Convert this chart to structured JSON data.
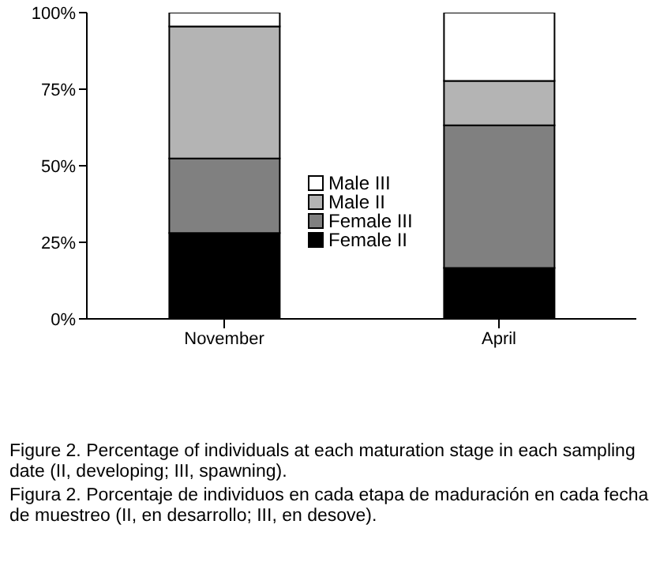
{
  "chart_data": {
    "type": "bar",
    "stacked": true,
    "categories": [
      "November",
      "April"
    ],
    "series": [
      {
        "name": "Female II",
        "color": "#000000",
        "values": [
          28.0,
          16.6
        ]
      },
      {
        "name": "Female III",
        "color": "#808080",
        "values": [
          24.4,
          46.6
        ]
      },
      {
        "name": "Male II",
        "color": "#b4b4b4",
        "values": [
          43.1,
          14.5
        ]
      },
      {
        "name": "Male III",
        "color": "#ffffff",
        "values": [
          4.5,
          22.3
        ]
      }
    ],
    "ylim": [
      0,
      100
    ],
    "yticks": [
      {
        "value": 0,
        "label": "0%"
      },
      {
        "value": 25,
        "label": "25%"
      },
      {
        "value": 50,
        "label": "50%"
      },
      {
        "value": 75,
        "label": "75%"
      },
      {
        "value": 100,
        "label": "100%"
      }
    ],
    "grid": false,
    "legend": "center",
    "annotations": [
      "Figure 2. Percentage of individuals at each maturation stage in each sampling date (II, developing; III, spawning).",
      "Figura 2. Porcentaje de individuos en cada etapa de maduración en cada fecha de muestreo (II, en desarrollo; III, en desove)."
    ]
  }
}
